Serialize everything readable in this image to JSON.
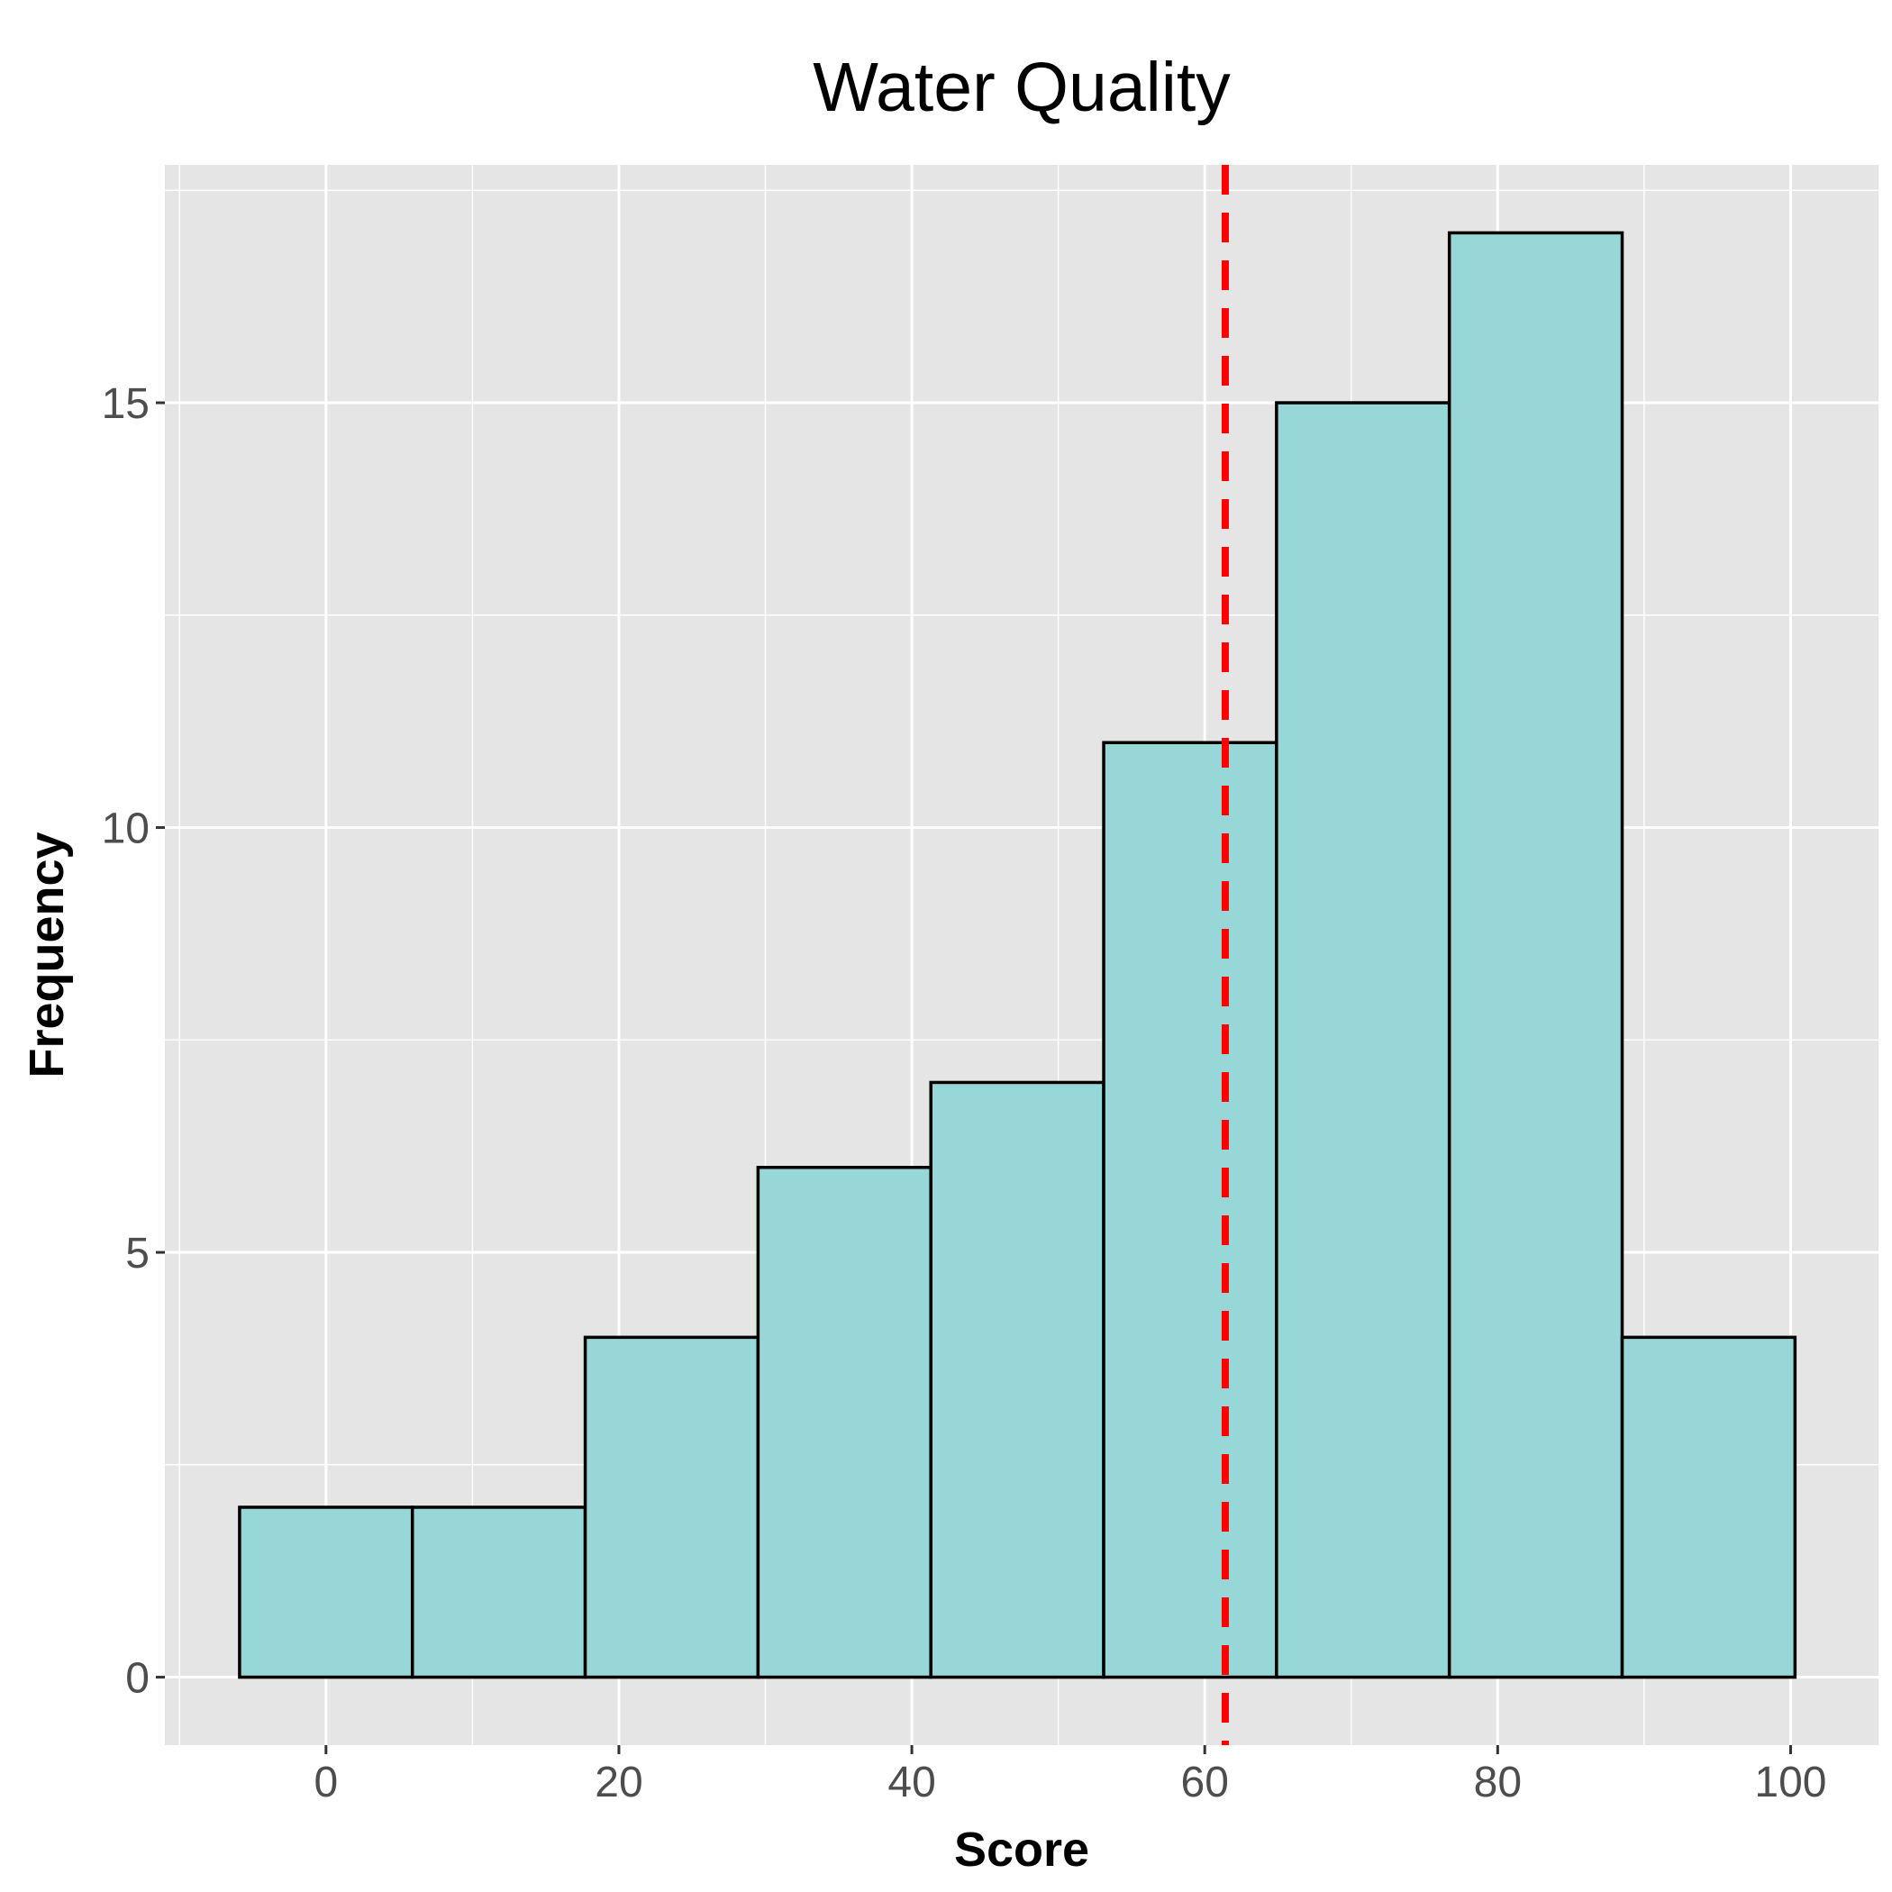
{
  "chart_data": {
    "type": "bar",
    "subtype": "histogram",
    "title": "Water Quality",
    "xlabel": "Score",
    "ylabel": "Frequency",
    "xlim": [
      -11,
      106
    ],
    "ylim": [
      -0.8,
      17.8
    ],
    "x_ticks": [
      0,
      20,
      40,
      60,
      80,
      100
    ],
    "y_ticks": [
      0,
      5,
      10,
      15
    ],
    "bins": [
      {
        "x0": -5.9,
        "x1": 5.9,
        "count": 2
      },
      {
        "x0": 5.9,
        "x1": 17.7,
        "count": 2
      },
      {
        "x0": 17.7,
        "x1": 29.5,
        "count": 4
      },
      {
        "x0": 29.5,
        "x1": 41.3,
        "count": 6
      },
      {
        "x0": 41.3,
        "x1": 53.1,
        "count": 7
      },
      {
        "x0": 53.1,
        "x1": 64.9,
        "count": 11
      },
      {
        "x0": 64.9,
        "x1": 76.7,
        "count": 15
      },
      {
        "x0": 76.7,
        "x1": 88.5,
        "count": 17
      },
      {
        "x0": 88.5,
        "x1": 100.3,
        "count": 4
      }
    ],
    "reference_line": {
      "x": 61.4,
      "style": "dashed",
      "color": "#ff0000"
    },
    "bar_fill": "#97d7d7",
    "bar_stroke": "#000000",
    "panel_background": "#e5e5e5",
    "grid": true,
    "legend": "none"
  }
}
